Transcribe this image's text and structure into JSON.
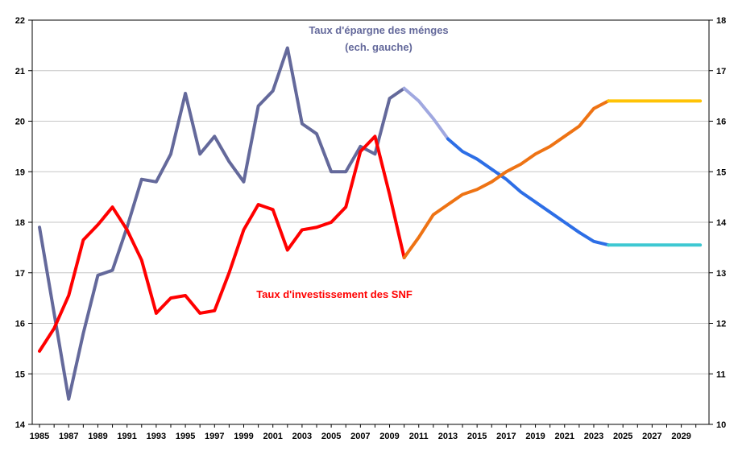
{
  "chart_data": {
    "type": "line",
    "title_line1": "Taux d'épargne des ménges",
    "title_line2": "(ech. gauche)",
    "annotation": "Taux d'investissement des SNF",
    "title_color": "#64699B",
    "annotation_color": "#FF0000",
    "grid_color": "#C6C6C6",
    "frame_color": "#000000",
    "background_color": "#FFFFFF",
    "legend_position": "none",
    "grid": "horizontal-only",
    "x_axis": {
      "min": 1984.5,
      "max": 2030.9,
      "label_ticks": [
        1985,
        1987,
        1989,
        1991,
        1993,
        1995,
        1997,
        1999,
        2001,
        2003,
        2005,
        2007,
        2009,
        2011,
        2013,
        2015,
        2017,
        2019,
        2021,
        2023,
        2025,
        2027,
        2029
      ],
      "minor_tick_from": 1985,
      "minor_tick_to": 2030,
      "minor_tick_step": 1
    },
    "left_axis": {
      "min": 14,
      "max": 22,
      "ticks": [
        14,
        15,
        16,
        17,
        18,
        19,
        20,
        21,
        22
      ],
      "gridlines": [
        15,
        16,
        17,
        18,
        19,
        20,
        21
      ]
    },
    "right_axis": {
      "min": 10,
      "max": 18,
      "ticks": [
        10,
        11,
        12,
        13,
        14,
        15,
        16,
        17,
        18
      ]
    },
    "series": [
      {
        "name": "epargne-menages-historique",
        "axis": "left",
        "color": "#64699B",
        "width": 4,
        "start_year": 1985,
        "values": [
          17.9,
          16.2,
          14.5,
          15.8,
          16.95,
          17.05,
          17.9,
          18.85,
          18.8,
          19.35,
          20.55,
          19.35,
          19.7,
          19.2,
          18.8,
          20.3,
          20.6,
          21.45,
          19.95,
          19.75,
          19.0,
          19.0,
          19.5,
          19.35,
          20.45,
          20.65
        ]
      },
      {
        "name": "epargne-projection-courte",
        "axis": "left",
        "color": "#A0A8E0",
        "width": 4,
        "start_year": 2010,
        "values": [
          20.65,
          20.4,
          20.05,
          19.65
        ]
      },
      {
        "name": "epargne-projection-longue",
        "axis": "left",
        "color": "#2D6EE6",
        "width": 4,
        "start_year": 2013,
        "values": [
          19.65,
          19.4,
          19.25,
          19.05,
          18.85,
          18.6,
          18.4,
          18.2,
          18.0,
          17.8,
          17.62,
          17.55
        ]
      },
      {
        "name": "epargne-stabilisation",
        "axis": "left",
        "color": "#3EC8D2",
        "width": 4,
        "points": [
          [
            2024,
            17.55
          ],
          [
            2030.3,
            17.55
          ]
        ]
      },
      {
        "name": "investissement-snf-historique",
        "axis": "right",
        "color": "#FF0000",
        "width": 4,
        "start_year": 1985,
        "values": [
          11.45,
          11.9,
          12.55,
          13.65,
          13.95,
          14.3,
          13.85,
          13.25,
          12.2,
          12.5,
          12.55,
          12.2,
          12.25,
          13.0,
          13.85,
          14.35,
          14.25,
          13.45,
          13.85,
          13.9,
          14.0,
          14.3,
          15.4,
          15.7,
          14.55,
          13.3
        ]
      },
      {
        "name": "investissement-projection",
        "axis": "right",
        "color": "#EE7314",
        "width": 4,
        "start_year": 2010,
        "values": [
          13.3,
          13.7,
          14.15,
          14.35,
          14.55,
          14.65,
          14.8,
          15.0,
          15.15,
          15.35,
          15.5,
          15.7,
          15.9,
          16.25,
          16.4
        ]
      },
      {
        "name": "investissement-stabilisation",
        "axis": "right",
        "color": "#FFC305",
        "width": 4,
        "points": [
          [
            2024,
            16.4
          ],
          [
            2030.3,
            16.4
          ]
        ]
      }
    ]
  }
}
